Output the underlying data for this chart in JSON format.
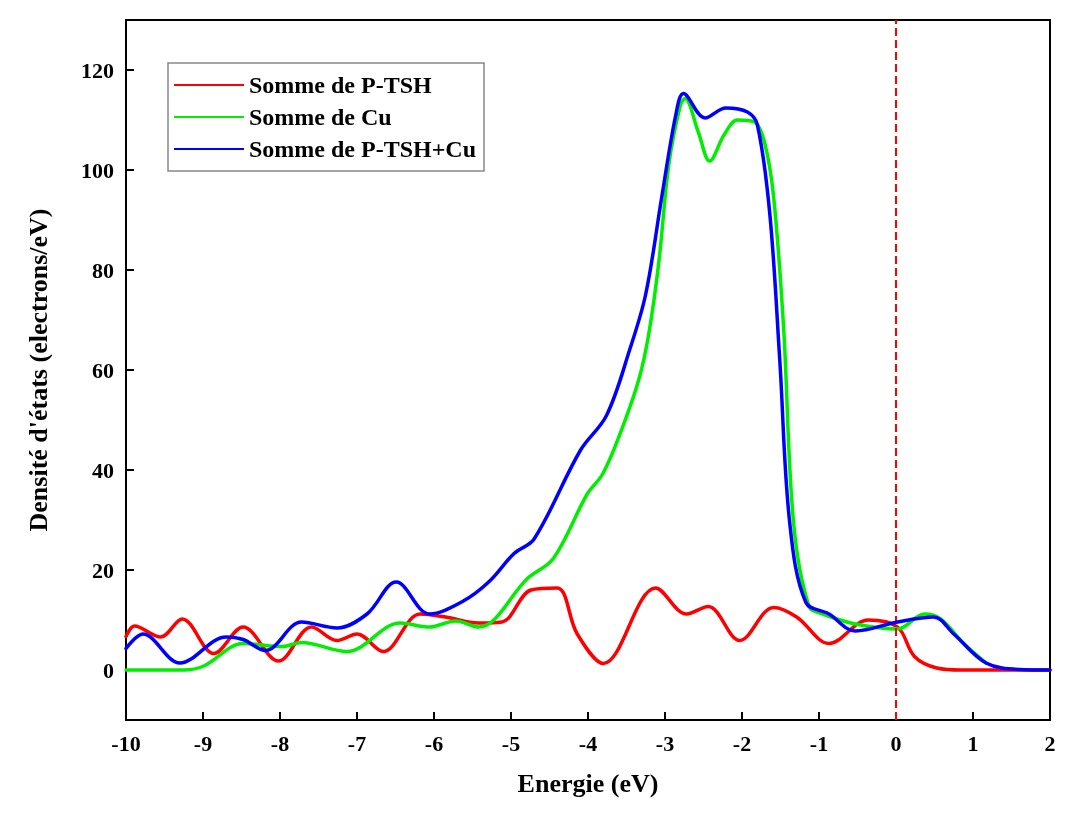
{
  "chart_data": {
    "type": "line",
    "xlabel": "Energie (eV)",
    "ylabel": "Densité d'états (electrons/eV)",
    "xlim": [
      -10,
      2
    ],
    "xticks": [
      -10,
      -9,
      -8,
      -7,
      -6,
      -5,
      -4,
      -3,
      -2,
      -1,
      0,
      1,
      2
    ],
    "ylim": [
      -10,
      130
    ],
    "yticks": [
      0,
      20,
      40,
      60,
      80,
      100,
      120
    ],
    "grid": false,
    "legend": "top left",
    "line_style": "solid",
    "marker": "none",
    "ref_lines": [
      {
        "axis": "x",
        "value": 0,
        "color": "#ff0000",
        "line_style": "dashed"
      }
    ],
    "series": [
      {
        "name": "Somme de P-TSH",
        "color": "#ff0000",
        "x": [
          -10,
          -9.89,
          -9.55,
          -9.27,
          -8.86,
          -8.48,
          -8.02,
          -7.59,
          -7.26,
          -7.0,
          -6.66,
          -6.18,
          -5.85,
          -5.42,
          -5.12,
          -4.74,
          -4.4,
          -4.14,
          -3.8,
          -3.12,
          -2.72,
          -2.44,
          -2.03,
          -1.59,
          -1.29,
          -0.87,
          -0.36,
          0.02,
          0.24,
          0.53,
          0.85,
          2
        ],
        "values": [
          6.7,
          8.8,
          6.6,
          10.2,
          3.3,
          8.6,
          1.8,
          8.6,
          5.9,
          7.2,
          3.7,
          11.2,
          10.6,
          9.4,
          9.6,
          16,
          16.4,
          7.2,
          1.3,
          16.4,
          11.2,
          12.7,
          5.9,
          12.5,
          10.6,
          5.3,
          10,
          8.6,
          2.7,
          0.4,
          0,
          0
        ]
      },
      {
        "name": "Somme de Cu",
        "color": "#00ee00",
        "x": [
          -10,
          -9.25,
          -8.99,
          -8.48,
          -7.97,
          -7.72,
          -7.13,
          -6.44,
          -6.06,
          -5.72,
          -5.42,
          -4.78,
          -4.45,
          -4.01,
          -3.81,
          -3.59,
          -3.34,
          -3.21,
          -3.08,
          -2.95,
          -2.8,
          -2.74,
          -2.57,
          -2.42,
          -2.23,
          -2.06,
          -1.84,
          -1.71,
          -1.59,
          -1.46,
          -1.33,
          -1.13,
          -0.95,
          -0.53,
          0.02,
          0.37,
          0.58,
          0.88,
          1.17
        ],
        "values": [
          0,
          0,
          0.8,
          5.3,
          4.7,
          5.5,
          3.7,
          9.4,
          8.6,
          9.8,
          8.6,
          18.4,
          22.3,
          35.2,
          39.2,
          47,
          58.1,
          67.3,
          81.6,
          101.2,
          113,
          114.3,
          107.7,
          101.8,
          107.1,
          110,
          109.6,
          105.7,
          94.7,
          68.5,
          29.4,
          12.7,
          11.2,
          9.2,
          8.2,
          11.2,
          10.2,
          5.3,
          1.4
        ]
      },
      {
        "name": "Somme de P-TSH+Cu",
        "color": "#0000ff",
        "x": [
          -10,
          -9.78,
          -9.3,
          -8.7,
          -8.48,
          -8.19,
          -7.72,
          -7.26,
          -6.87,
          -6.49,
          -6.06,
          -5.63,
          -5.29,
          -4.96,
          -4.7,
          -4.1,
          -3.76,
          -3.46,
          -3.25,
          -3.04,
          -2.86,
          -2.76,
          -2.48,
          -2.21,
          -1.93,
          -1.8,
          -1.64,
          -1.51,
          -1.38,
          -1.17,
          -0.87,
          -0.53,
          0.02,
          0.49,
          0.75,
          1.17,
          1.6,
          2
        ],
        "values": [
          4.3,
          7.2,
          1.4,
          6.6,
          6.1,
          3.9,
          9.6,
          8.4,
          11.2,
          17.6,
          11.2,
          13.7,
          17.6,
          23.3,
          26.2,
          43.9,
          50.9,
          64,
          75.2,
          94.8,
          111,
          115.3,
          110.4,
          112.4,
          111.6,
          109,
          91.4,
          62.1,
          29.4,
          13.5,
          11.2,
          7.8,
          9.6,
          10.6,
          7.2,
          1.4,
          0.1,
          0
        ]
      }
    ]
  }
}
